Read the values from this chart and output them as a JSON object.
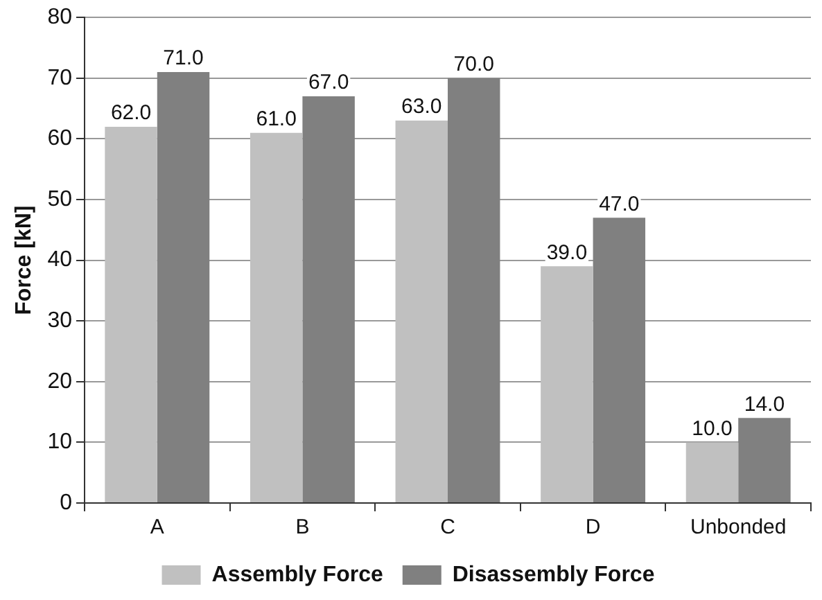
{
  "chart_data": {
    "type": "bar",
    "ylabel": "Force [kN]",
    "categories": [
      "A",
      "B",
      "C",
      "D",
      "Unbonded"
    ],
    "series": [
      {
        "name": "Assembly Force",
        "color": "#c0c0c0",
        "values": [
          62,
          61,
          63,
          39,
          10
        ],
        "value_labels": [
          "62.0",
          "61.0",
          "63.0",
          "39.0",
          "10.0"
        ]
      },
      {
        "name": "Disassembly Force",
        "color": "#808080",
        "values": [
          71,
          67,
          70,
          47,
          14
        ],
        "value_labels": [
          "71.0",
          "67.0",
          "70.0",
          "47.0",
          "14.0"
        ]
      }
    ],
    "ylim": [
      0,
      80
    ],
    "yticks": [
      0,
      10,
      20,
      30,
      40,
      50,
      60,
      70,
      80
    ],
    "grid": "y",
    "legend": "bottom"
  }
}
